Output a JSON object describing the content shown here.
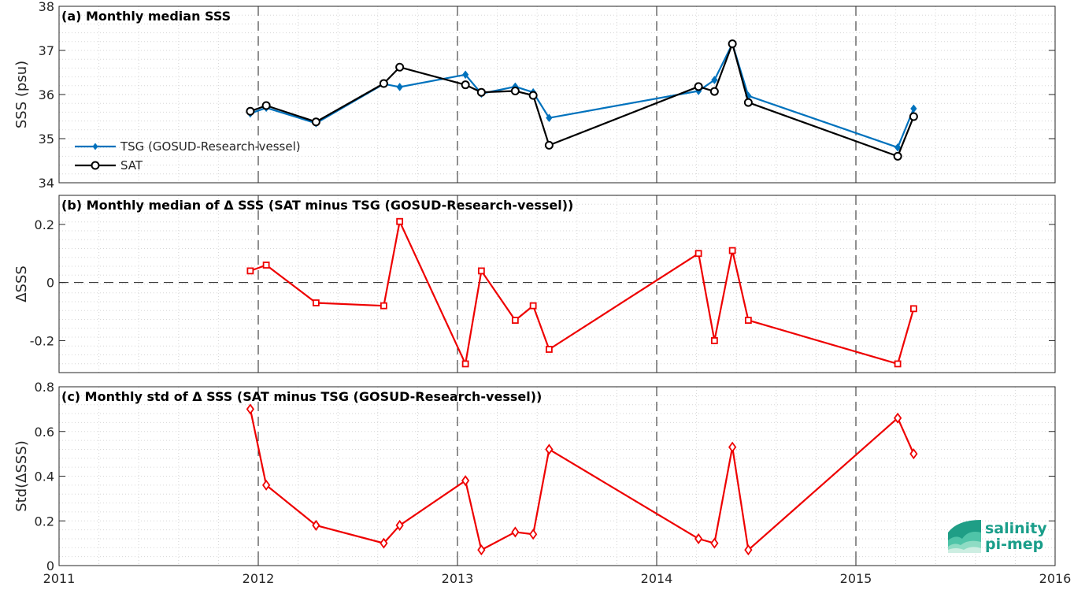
{
  "colors": {
    "tsg": "#0072BD",
    "sat": "#000000",
    "diff": "#EE0000",
    "logo_text": "#1A9E8A",
    "logo_shape": "#2FB79E"
  },
  "logo": {
    "line1": "salinity",
    "line2": "pi-mep"
  },
  "xaxis": {
    "min": 2011,
    "max": 2016,
    "ticks": [
      "2011",
      "2012",
      "2013",
      "2014",
      "2015",
      "2016"
    ]
  },
  "chart_data": [
    {
      "type": "line",
      "title": "(a) Monthly median SSS",
      "ylabel": "SSS (psu)",
      "ylim": [
        34,
        38
      ],
      "yticks": [
        "34",
        "35",
        "36",
        "37",
        "38"
      ],
      "ytick_values": [
        34,
        35,
        36,
        37,
        38
      ],
      "grid": true,
      "legend": "bottom-left",
      "series": [
        {
          "name": "TSG (GOSUD-Research-vessel)",
          "x": [
            2011.96,
            2012.04,
            2012.29,
            2012.63,
            2012.71,
            2013.04,
            2013.12,
            2013.29,
            2013.38,
            2013.46,
            2014.21,
            2014.29,
            2014.38,
            2014.46,
            2015.21,
            2015.29
          ],
          "values": [
            35.57,
            35.7,
            35.35,
            36.24,
            36.17,
            36.45,
            36.02,
            36.18,
            36.05,
            35.47,
            36.08,
            36.33,
            37.15,
            35.97,
            34.8,
            35.68
          ]
        },
        {
          "name": "SAT",
          "x": [
            2011.96,
            2012.04,
            2012.29,
            2012.63,
            2012.71,
            2013.04,
            2013.12,
            2013.29,
            2013.38,
            2013.46,
            2014.21,
            2014.29,
            2014.38,
            2014.46,
            2015.21,
            2015.29
          ],
          "values": [
            35.62,
            35.75,
            35.38,
            36.25,
            36.62,
            36.22,
            36.05,
            36.08,
            35.98,
            34.85,
            36.18,
            36.07,
            37.15,
            35.82,
            34.6,
            35.5
          ]
        }
      ]
    },
    {
      "type": "line",
      "title": "(b) Monthly median of Δ SSS (SAT minus TSG (GOSUD-Research-vessel))",
      "ylabel": "ΔSSS",
      "ylim": [
        -0.31,
        0.3
      ],
      "yticks": [
        "-0.2",
        "0",
        "0.2"
      ],
      "ytick_values": [
        -0.2,
        0,
        0.2
      ],
      "grid": true,
      "series": [
        {
          "x": [
            2011.96,
            2012.04,
            2012.29,
            2012.63,
            2012.71,
            2013.04,
            2013.12,
            2013.29,
            2013.38,
            2013.46,
            2014.21,
            2014.29,
            2014.38,
            2014.46,
            2015.21,
            2015.29
          ],
          "values": [
            0.04,
            0.06,
            -0.07,
            -0.08,
            0.21,
            -0.28,
            0.04,
            -0.13,
            -0.08,
            -0.23,
            0.1,
            -0.2,
            0.11,
            -0.13,
            -0.28,
            -0.09
          ]
        }
      ]
    },
    {
      "type": "line",
      "title": "(c) Monthly std of Δ SSS (SAT minus TSG (GOSUD-Research-vessel))",
      "ylabel": "Std(ΔSSS)",
      "ylim": [
        0,
        0.8
      ],
      "yticks": [
        "0",
        "0.2",
        "0.4",
        "0.6",
        "0.8"
      ],
      "ytick_values": [
        0,
        0.2,
        0.4,
        0.6,
        0.8
      ],
      "grid": true,
      "series": [
        {
          "x": [
            2011.96,
            2012.04,
            2012.29,
            2012.63,
            2012.71,
            2013.04,
            2013.12,
            2013.29,
            2013.38,
            2013.46,
            2014.21,
            2014.29,
            2014.38,
            2014.46,
            2015.21,
            2015.29
          ],
          "values": [
            0.7,
            0.36,
            0.18,
            0.1,
            0.18,
            0.38,
            0.07,
            0.15,
            0.14,
            0.52,
            0.12,
            0.1,
            0.53,
            0.07,
            0.66,
            0.5
          ]
        }
      ]
    }
  ]
}
